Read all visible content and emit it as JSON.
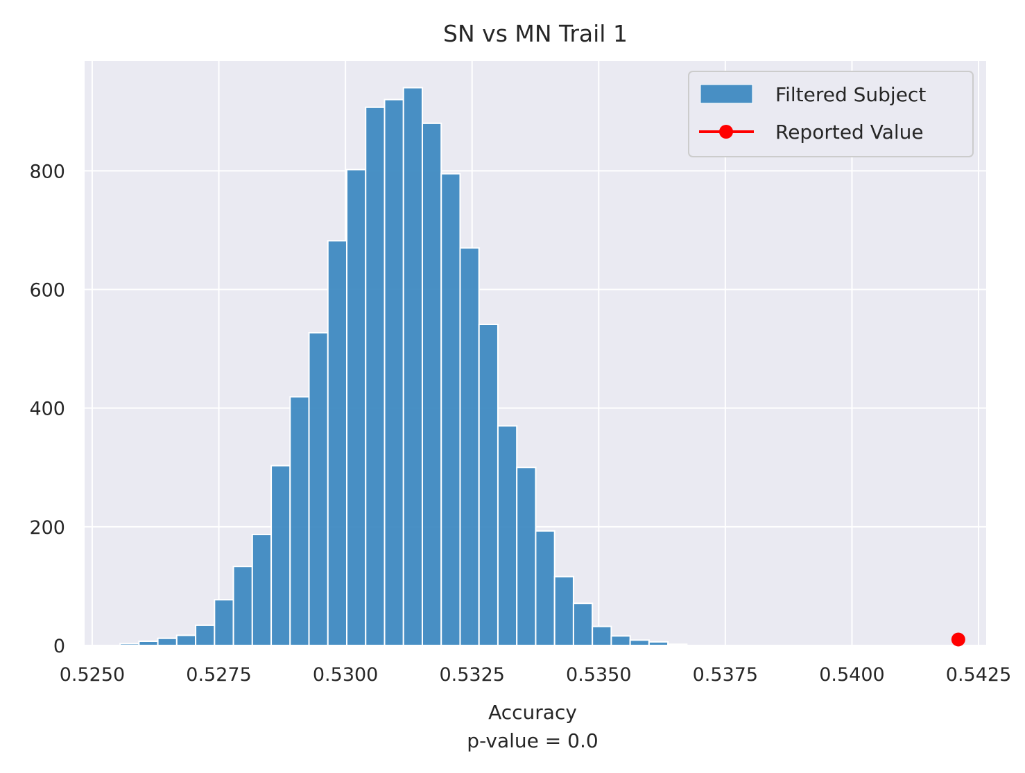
{
  "chart_data": {
    "type": "bar",
    "title": "SN vs MN Trail 1",
    "xlabel": "Accuracy",
    "xlabel_sub": "p-value = 0.0",
    "ylabel": "",
    "xlim": [
      0.52485,
      0.54265
    ],
    "ylim": [
      0,
      985
    ],
    "xticks": [
      0.525,
      0.5275,
      0.53,
      0.5325,
      0.535,
      0.5375,
      0.54,
      0.5425
    ],
    "xtick_labels": [
      "0.5250",
      "0.5275",
      "0.5300",
      "0.5325",
      "0.5350",
      "0.5375",
      "0.5400",
      "0.5425"
    ],
    "yticks": [
      0,
      200,
      400,
      600,
      800
    ],
    "ytick_labels": [
      "0",
      "200",
      "400",
      "600",
      "800"
    ],
    "grid": true,
    "legend_position": "top-right",
    "bin_start": 0.52555,
    "bin_width": 0.000373,
    "series": [
      {
        "name": "Filtered Subject",
        "kind": "histogram",
        "color": "#3a87c0",
        "values": [
          3,
          7,
          12,
          17,
          34,
          77,
          133,
          187,
          303,
          419,
          527,
          682,
          802,
          907,
          920,
          940,
          880,
          795,
          670,
          541,
          370,
          300,
          193,
          116,
          71,
          32,
          16,
          9,
          6,
          2
        ]
      },
      {
        "name": "Reported Value",
        "kind": "point",
        "color": "#ff0000",
        "x": [
          0.5421
        ],
        "y": [
          10
        ]
      }
    ]
  }
}
